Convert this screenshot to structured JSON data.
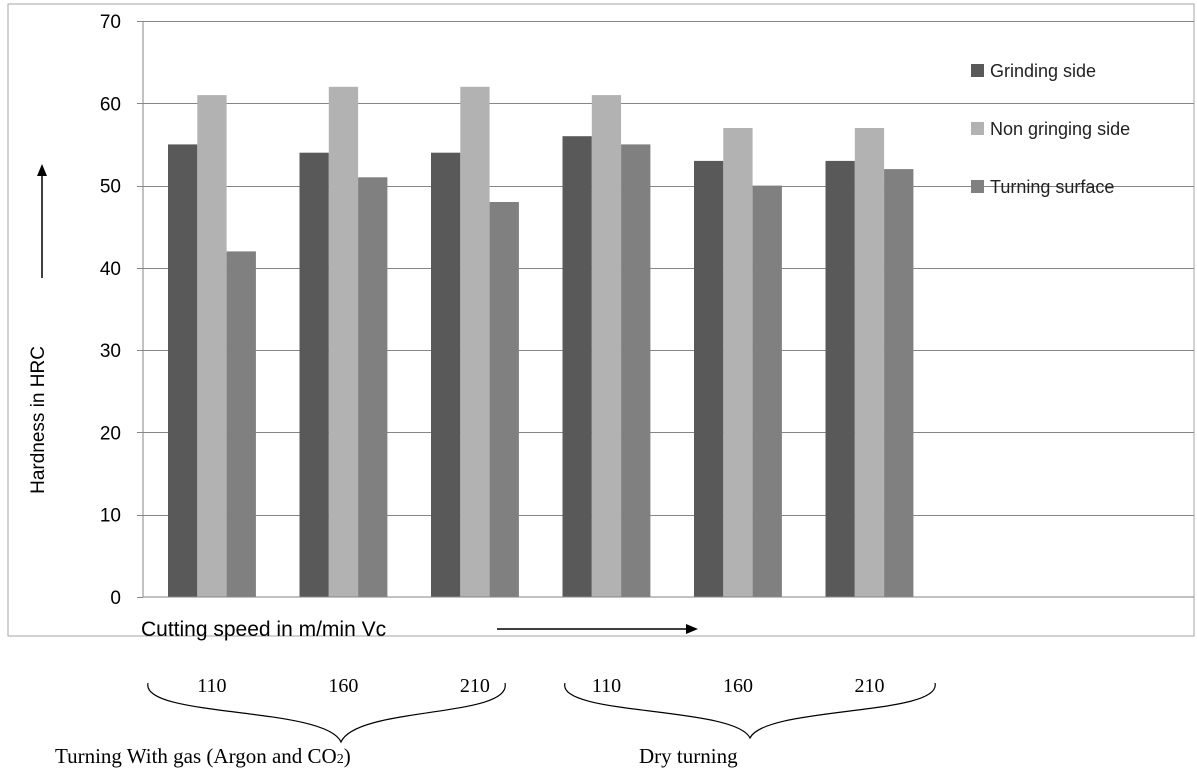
{
  "chart_data": {
    "type": "bar",
    "categories": [
      "110",
      "160",
      "210",
      "110",
      "160",
      "210"
    ],
    "series": [
      {
        "name": "Grinding side",
        "values": [
          55,
          54,
          54,
          56,
          53,
          53
        ],
        "color": "#595959"
      },
      {
        "name": "Non gringing side",
        "values": [
          61,
          62,
          62,
          61,
          57,
          57
        ],
        "color": "#b2b2b2"
      },
      {
        "name": "Turning surface",
        "values": [
          42,
          51,
          48,
          55,
          50,
          52
        ],
        "color": "#808080"
      }
    ],
    "ylabel": "Hardness in HRC",
    "xlabel": "Cutting speed in m/min Vc",
    "ylim": [
      0,
      70
    ],
    "yticks": [
      "0",
      "10",
      "20",
      "30",
      "40",
      "50",
      "60",
      "70"
    ],
    "grid": true,
    "legend_position": "top-right",
    "groups": [
      {
        "label_main": "Turning With gas (Argon and CO",
        "label_sub": "2",
        "label_end": ")"
      },
      {
        "label_main": "Dry turning",
        "label_sub": "",
        "label_end": ""
      }
    ]
  }
}
